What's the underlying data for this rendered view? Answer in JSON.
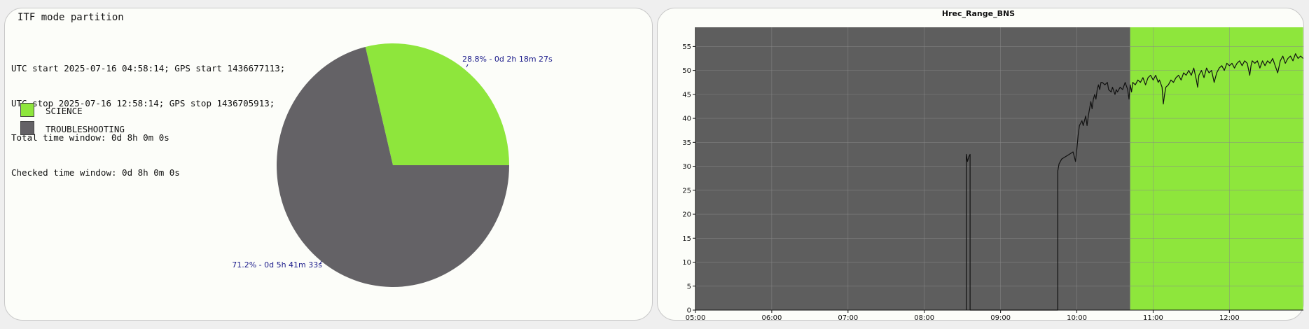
{
  "left_panel": {
    "title": "ITF mode partition",
    "info_lines": [
      "UTC start 2025-07-16 04:58:14; GPS start 1436677113;",
      "UTC stop 2025-07-16 12:58:14; GPS stop 1436705913;",
      "Total time window: 0d 8h 0m 0s",
      "Checked time window: 0d 8h 0m 0s"
    ],
    "legend": [
      {
        "label": "SCIENCE",
        "color": "#8ee63c"
      },
      {
        "label": "TROUBLESHOOTING",
        "color": "#646266"
      }
    ]
  },
  "chart_data": [
    {
      "type": "pie",
      "slices": [
        {
          "name": "SCIENCE",
          "value": 28.8,
          "label": "28.8% - 0d 2h 18m 27s",
          "color": "#8ee63c"
        },
        {
          "name": "TROUBLESHOOTING",
          "value": 71.2,
          "label": "71.2% - 0d 5h 41m 33s",
          "color": "#646266"
        }
      ]
    },
    {
      "type": "line",
      "title": "Hrec_Range_BNS",
      "xlim": [
        5.0,
        12.97
      ],
      "ylim": [
        0,
        59
      ],
      "x_ticks": [
        "05:00",
        "06:00",
        "07:00",
        "08:00",
        "09:00",
        "10:00",
        "11:00",
        "12:00"
      ],
      "y_ticks": [
        0,
        5,
        10,
        15,
        20,
        25,
        30,
        35,
        40,
        45,
        50,
        55
      ],
      "grid": true,
      "background_regions": [
        {
          "name": "TROUBLESHOOTING",
          "from": "05:00",
          "to": "10:42",
          "color": "#5e5e5e"
        },
        {
          "name": "SCIENCE",
          "from": "10:42",
          "to": "12:58",
          "color": "#8ee63c"
        }
      ],
      "series": [
        {
          "color": "#111111",
          "points": [
            [
              "08:33",
              0
            ],
            [
              "08:33",
              32.5
            ],
            [
              "08:34",
              31
            ],
            [
              "08:35",
              32
            ],
            [
              "08:36",
              32.5
            ],
            [
              "08:36",
              0
            ],
            [
              "09:45",
              0
            ],
            [
              "09:45",
              29
            ],
            [
              "09:46",
              30.5
            ],
            [
              "09:48",
              31.5
            ],
            [
              "09:51",
              32
            ],
            [
              "09:54",
              32.5
            ],
            [
              "09:57",
              33
            ],
            [
              "09:59",
              31
            ],
            [
              "10:00",
              33.5
            ],
            [
              "10:01",
              36.5
            ],
            [
              "10:02",
              38.5
            ],
            [
              "10:04",
              39.5
            ],
            [
              "10:05",
              38.5
            ],
            [
              "10:06",
              39.5
            ],
            [
              "10:07",
              40.5
            ],
            [
              "10:08",
              38.5
            ],
            [
              "10:09",
              40.5
            ],
            [
              "10:10",
              42
            ],
            [
              "10:11",
              43.5
            ],
            [
              "10:12",
              42
            ],
            [
              "10:13",
              44
            ],
            [
              "10:14",
              45
            ],
            [
              "10:15",
              44
            ],
            [
              "10:16",
              46
            ],
            [
              "10:17",
              47
            ],
            [
              "10:18",
              46
            ],
            [
              "10:19",
              47.5
            ],
            [
              "10:20",
              47.5
            ],
            [
              "10:22",
              47
            ],
            [
              "10:24",
              47.5
            ],
            [
              "10:25",
              46
            ],
            [
              "10:27",
              45.5
            ],
            [
              "10:28",
              46.5
            ],
            [
              "10:30",
              45
            ],
            [
              "10:31",
              46
            ],
            [
              "10:32",
              45.5
            ],
            [
              "10:34",
              46.5
            ],
            [
              "10:36",
              46
            ],
            [
              "10:38",
              47.5
            ],
            [
              "10:40",
              46
            ],
            [
              "10:41",
              44
            ],
            [
              "10:42",
              47
            ],
            [
              "10:43",
              45.5
            ],
            [
              "10:44",
              47.5
            ],
            [
              "10:46",
              47
            ],
            [
              "10:48",
              48
            ],
            [
              "10:50",
              47.5
            ],
            [
              "10:52",
              48.5
            ],
            [
              "10:54",
              47
            ],
            [
              "10:56",
              48.5
            ],
            [
              "10:58",
              49
            ],
            [
              "11:00",
              48
            ],
            [
              "11:02",
              49
            ],
            [
              "11:04",
              47.5
            ],
            [
              "11:05",
              48
            ],
            [
              "11:07",
              46.5
            ],
            [
              "11:08",
              43
            ],
            [
              "11:09",
              45
            ],
            [
              "11:10",
              46.5
            ],
            [
              "11:12",
              47
            ],
            [
              "11:14",
              48
            ],
            [
              "11:16",
              47.5
            ],
            [
              "11:18",
              48.5
            ],
            [
              "11:20",
              49
            ],
            [
              "11:22",
              48
            ],
            [
              "11:24",
              49.5
            ],
            [
              "11:26",
              49
            ],
            [
              "11:28",
              50
            ],
            [
              "11:30",
              49
            ],
            [
              "11:32",
              50.5
            ],
            [
              "11:34",
              48
            ],
            [
              "11:35",
              46.5
            ],
            [
              "11:36",
              49
            ],
            [
              "11:38",
              50
            ],
            [
              "11:40",
              48.5
            ],
            [
              "11:42",
              50.5
            ],
            [
              "11:44",
              49.5
            ],
            [
              "11:46",
              50
            ],
            [
              "11:48",
              47.5
            ],
            [
              "11:50",
              49.5
            ],
            [
              "11:52",
              50.5
            ],
            [
              "11:54",
              51
            ],
            [
              "11:56",
              50
            ],
            [
              "11:58",
              51.5
            ],
            [
              "12:00",
              51
            ],
            [
              "12:02",
              51.5
            ],
            [
              "12:04",
              50.5
            ],
            [
              "12:06",
              51.5
            ],
            [
              "12:08",
              52
            ],
            [
              "12:10",
              51
            ],
            [
              "12:12",
              52
            ],
            [
              "12:14",
              51.5
            ],
            [
              "12:16",
              49
            ],
            [
              "12:17",
              51
            ],
            [
              "12:18",
              52
            ],
            [
              "12:20",
              51.5
            ],
            [
              "12:22",
              52
            ],
            [
              "12:24",
              50.5
            ],
            [
              "12:26",
              52
            ],
            [
              "12:28",
              51
            ],
            [
              "12:30",
              52
            ],
            [
              "12:32",
              51.5
            ],
            [
              "12:34",
              52.5
            ],
            [
              "12:36",
              51
            ],
            [
              "12:38",
              49.5
            ],
            [
              "12:40",
              52
            ],
            [
              "12:42",
              53
            ],
            [
              "12:44",
              51.5
            ],
            [
              "12:46",
              52.5
            ],
            [
              "12:48",
              53
            ],
            [
              "12:50",
              52
            ],
            [
              "12:52",
              53.5
            ],
            [
              "12:54",
              52.5
            ],
            [
              "12:56",
              53
            ],
            [
              "12:58",
              52.5
            ]
          ]
        }
      ]
    }
  ]
}
